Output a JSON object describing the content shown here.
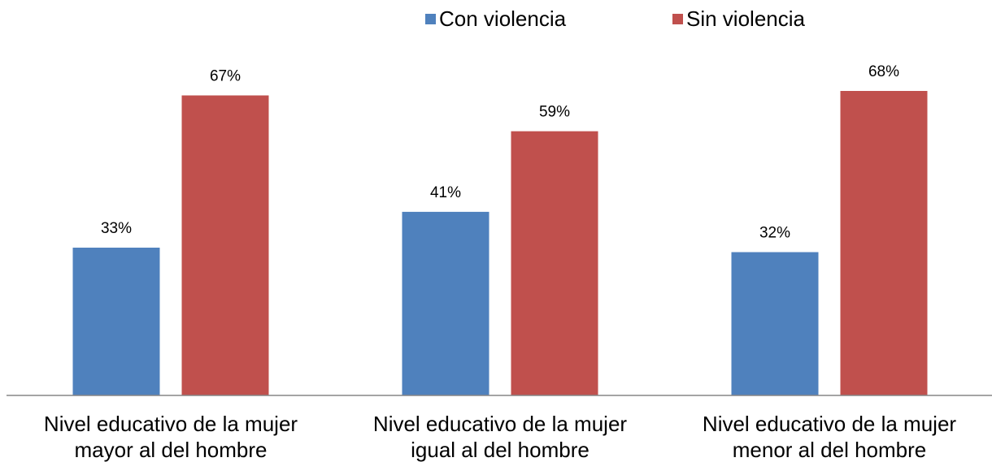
{
  "chart_data": {
    "type": "bar",
    "categories": [
      "Nivel educativo de la mujer\nmayor al del hombre",
      "Nivel educativo de la mujer\nigual al del hombre",
      "Nivel educativo de la mujer\nmenor al del hombre"
    ],
    "series": [
      {
        "name": "Con violencia",
        "color": "#4f81bd",
        "values": [
          33,
          41,
          32
        ],
        "value_labels": [
          "33%",
          "41%",
          "32%"
        ]
      },
      {
        "name": "Sin violencia",
        "color": "#c0504d",
        "values": [
          67,
          59,
          68
        ],
        "value_labels": [
          "67%",
          "59%",
          "68%"
        ]
      }
    ],
    "legend": "top"
  }
}
